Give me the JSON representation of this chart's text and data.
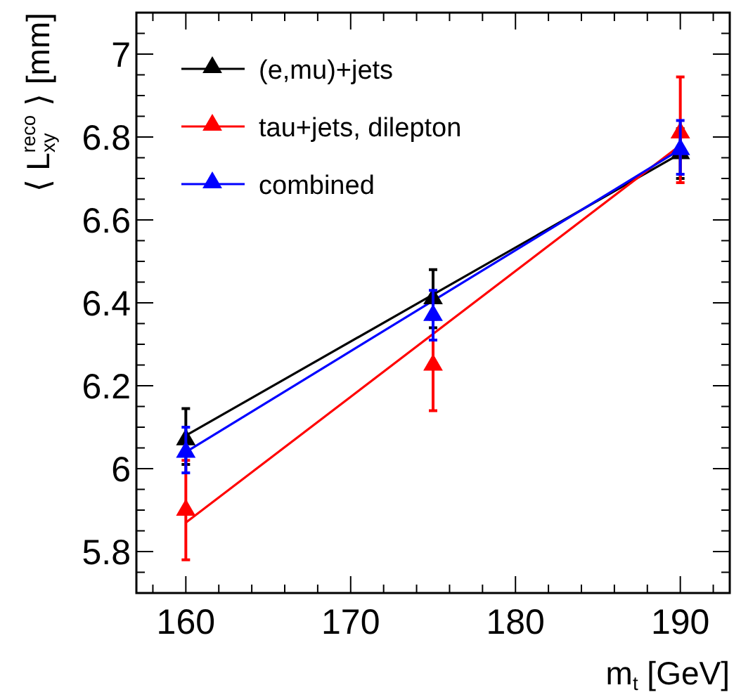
{
  "chart_data": {
    "type": "scatter",
    "xlabel": "m$_{t}$ [GeV]",
    "ylabel": "⟨ L$_{xy}$$^{reco}$ ⟩ [mm]",
    "xlim": [
      157,
      193
    ],
    "ylim": [
      5.7,
      7.1
    ],
    "xticks": [
      {
        "value": 158,
        "label": null
      },
      160,
      {
        "value": 162,
        "label": null
      },
      {
        "value": 164,
        "label": null
      },
      {
        "value": 166,
        "label": null
      },
      {
        "value": 168,
        "label": null
      },
      170,
      {
        "value": 172,
        "label": null
      },
      {
        "value": 174,
        "label": null
      },
      {
        "value": 176,
        "label": null
      },
      {
        "value": 178,
        "label": null
      },
      180,
      {
        "value": 182,
        "label": null
      },
      {
        "value": 184,
        "label": null
      },
      {
        "value": 186,
        "label": null
      },
      {
        "value": 188,
        "label": null
      },
      190,
      {
        "value": 192,
        "label": null
      }
    ],
    "yticks": [
      {
        "value": 5.75,
        "label": null
      },
      5.8,
      {
        "value": 5.85,
        "label": null
      },
      {
        "value": 5.9,
        "label": null
      },
      {
        "value": 5.95,
        "label": null
      },
      6,
      {
        "value": 6.05,
        "label": null
      },
      {
        "value": 6.1,
        "label": null
      },
      {
        "value": 6.15,
        "label": null
      },
      6.2,
      {
        "value": 6.25,
        "label": null
      },
      {
        "value": 6.3,
        "label": null
      },
      {
        "value": 6.35,
        "label": null
      },
      6.4,
      {
        "value": 6.45,
        "label": null
      },
      {
        "value": 6.5,
        "label": null
      },
      {
        "value": 6.55,
        "label": null
      },
      6.6,
      {
        "value": 6.65,
        "label": null
      },
      {
        "value": 6.7,
        "label": null
      },
      {
        "value": 6.75,
        "label": null
      },
      6.8,
      {
        "value": 6.85,
        "label": null
      },
      {
        "value": 6.9,
        "label": null
      },
      {
        "value": 6.95,
        "label": null
      },
      7,
      {
        "value": 7.05,
        "label": null
      }
    ],
    "grid": false,
    "legend": "top left",
    "marker": "triangle",
    "series": [
      {
        "type": "line",
        "marker": "none",
        "x": [
          160,
          190
        ],
        "values": [
          6.08,
          6.76
        ],
        "color": "#000000"
      },
      {
        "type": "line",
        "marker": "none",
        "x": [
          160,
          190
        ],
        "values": [
          5.87,
          6.78
        ],
        "color": "#ff0000"
      },
      {
        "type": "line",
        "marker": "none",
        "x": [
          160,
          190
        ],
        "values": [
          6.04,
          6.77
        ],
        "color": "#0000ff"
      },
      {
        "name": "(e,mu)+jets",
        "x": [
          160,
          175,
          190
        ],
        "values": [
          6.07,
          6.41,
          6.76
        ],
        "errors": [
          [
            6.01,
            6.145
          ],
          [
            6.34,
            6.48
          ],
          [
            6.7,
            6.82
          ]
        ],
        "color": "#000000"
      },
      {
        "name": "tau+jets, dilepton",
        "x": [
          160,
          175,
          190
        ],
        "values": [
          5.9,
          6.25,
          6.81
        ],
        "errors": [
          [
            5.78,
            6.02
          ],
          [
            6.14,
            6.36
          ],
          [
            6.69,
            6.945
          ]
        ],
        "color": "#ff0000"
      },
      {
        "name": "combined",
        "x": [
          160,
          175,
          190
        ],
        "values": [
          6.04,
          6.37,
          6.77
        ],
        "errors": [
          [
            5.99,
            6.1
          ],
          [
            6.31,
            6.43
          ],
          [
            6.71,
            6.84
          ]
        ],
        "color": "#0000ff"
      }
    ]
  }
}
